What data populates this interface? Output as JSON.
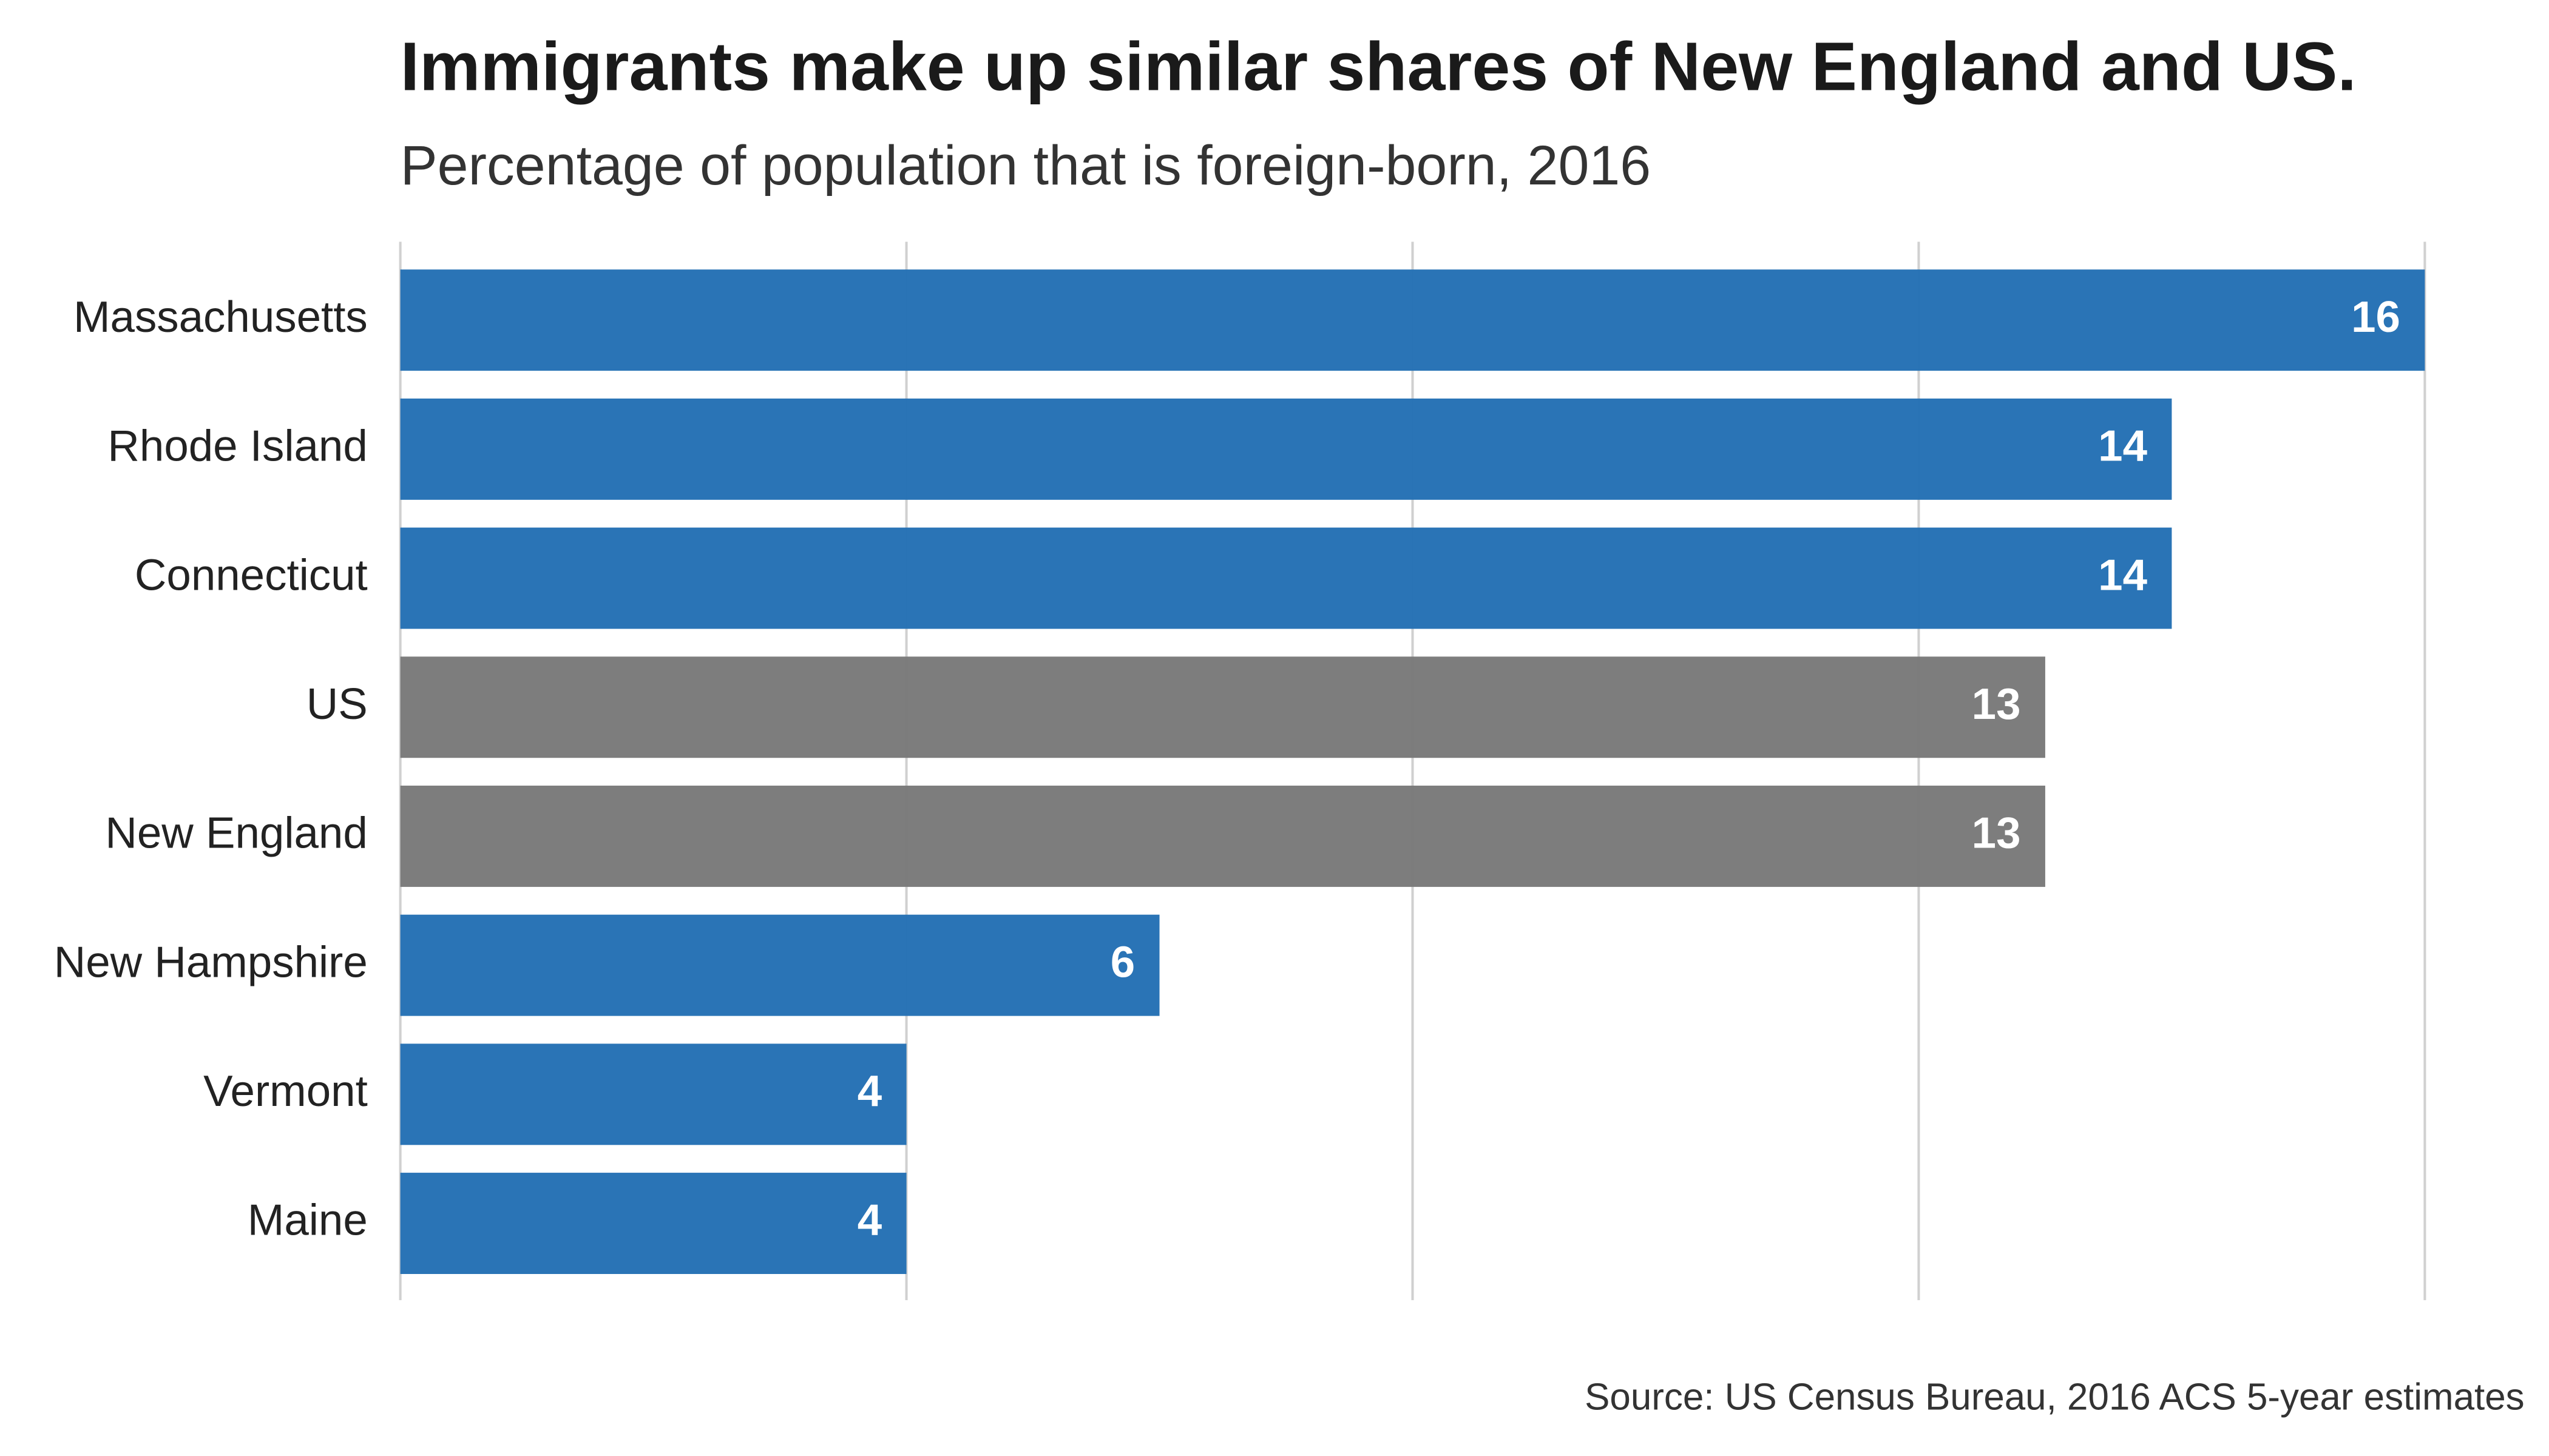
{
  "chart_data": {
    "type": "barh",
    "title": "Immigrants make up similar shares of New England and US.",
    "subtitle": "Percentage of population that is foreign-born, 2016",
    "source": "Source: US Census Bureau, 2016 ACS 5-year estimates",
    "categories": [
      "Massachusetts",
      "Rhode Island",
      "Connecticut",
      "US",
      "New England",
      "New Hampshire",
      "Vermont",
      "Maine"
    ],
    "values": [
      16,
      14,
      14,
      13,
      13,
      6,
      4,
      4
    ],
    "colors": [
      "#2671b5",
      "#2671b5",
      "#2671b5",
      "#7a7a7a",
      "#7a7a7a",
      "#2671b5",
      "#2671b5",
      "#2671b5"
    ],
    "xlim": [
      0,
      16
    ],
    "xticks": [
      0,
      4,
      8,
      12,
      16
    ],
    "grid": true
  }
}
